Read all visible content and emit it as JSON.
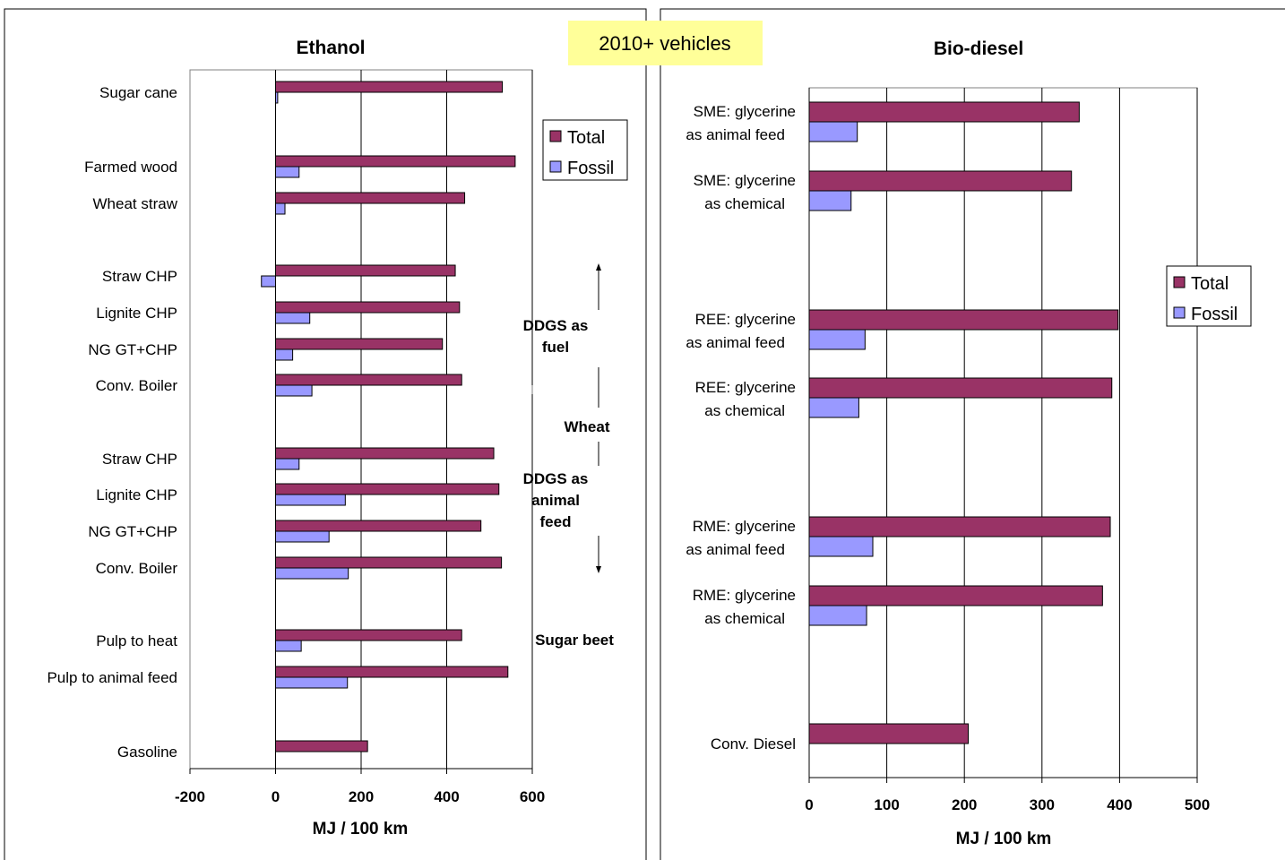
{
  "banner": "2010+ vehicles",
  "colors": {
    "total": "#993366",
    "fossil": "#9999ff",
    "banner": "#ffff99"
  },
  "chart_data": [
    {
      "type": "bar",
      "orientation": "horizontal",
      "title": "Ethanol",
      "xlabel": "MJ / 100 km",
      "ylabel": "",
      "xlim": [
        -200,
        600
      ],
      "xticks": [
        "-200",
        "0",
        "200",
        "400",
        "600"
      ],
      "grid": true,
      "legend_placement": "top-right",
      "categories": [
        "Sugar cane",
        "Farmed wood",
        "Wheat straw",
        "Straw CHP",
        "Lignite CHP",
        "NG GT+CHP",
        "Conv. Boiler",
        "Straw CHP",
        "Lignite CHP",
        "NG GT+CHP",
        "Conv. Boiler",
        "Pulp to heat",
        "Pulp to animal feed",
        "Gasoline"
      ],
      "series": [
        {
          "name": "Total",
          "values": [
            530,
            560,
            442,
            420,
            430,
            390,
            435,
            510,
            522,
            480,
            528,
            435,
            543,
            215
          ]
        },
        {
          "name": "Fossil",
          "values": [
            5,
            55,
            22,
            -33,
            80,
            40,
            85,
            55,
            163,
            125,
            170,
            60,
            168,
            null
          ]
        }
      ],
      "annotations": [
        "DDGS as fuel",
        "Wheat",
        "DDGS as animal feed",
        "Sugar beet"
      ]
    },
    {
      "type": "bar",
      "orientation": "horizontal",
      "title": "Bio-diesel",
      "xlabel": "MJ / 100 km",
      "ylabel": "",
      "xlim": [
        0,
        500
      ],
      "xticks": [
        "0",
        "100",
        "200",
        "300",
        "400",
        "500"
      ],
      "grid": true,
      "legend_placement": "right",
      "categories": [
        "SME: glycerine as animal feed",
        "SME: glycerine as chemical",
        "REE: glycerine as animal feed",
        "REE: glycerine as chemical",
        "RME: glycerine as animal feed",
        "RME: glycerine as chemical",
        "Conv. Diesel"
      ],
      "series": [
        {
          "name": "Total",
          "values": [
            348,
            338,
            398,
            390,
            388,
            378,
            205
          ]
        },
        {
          "name": "Fossil",
          "values": [
            62,
            54,
            72,
            64,
            82,
            74,
            null
          ]
        }
      ]
    }
  ]
}
